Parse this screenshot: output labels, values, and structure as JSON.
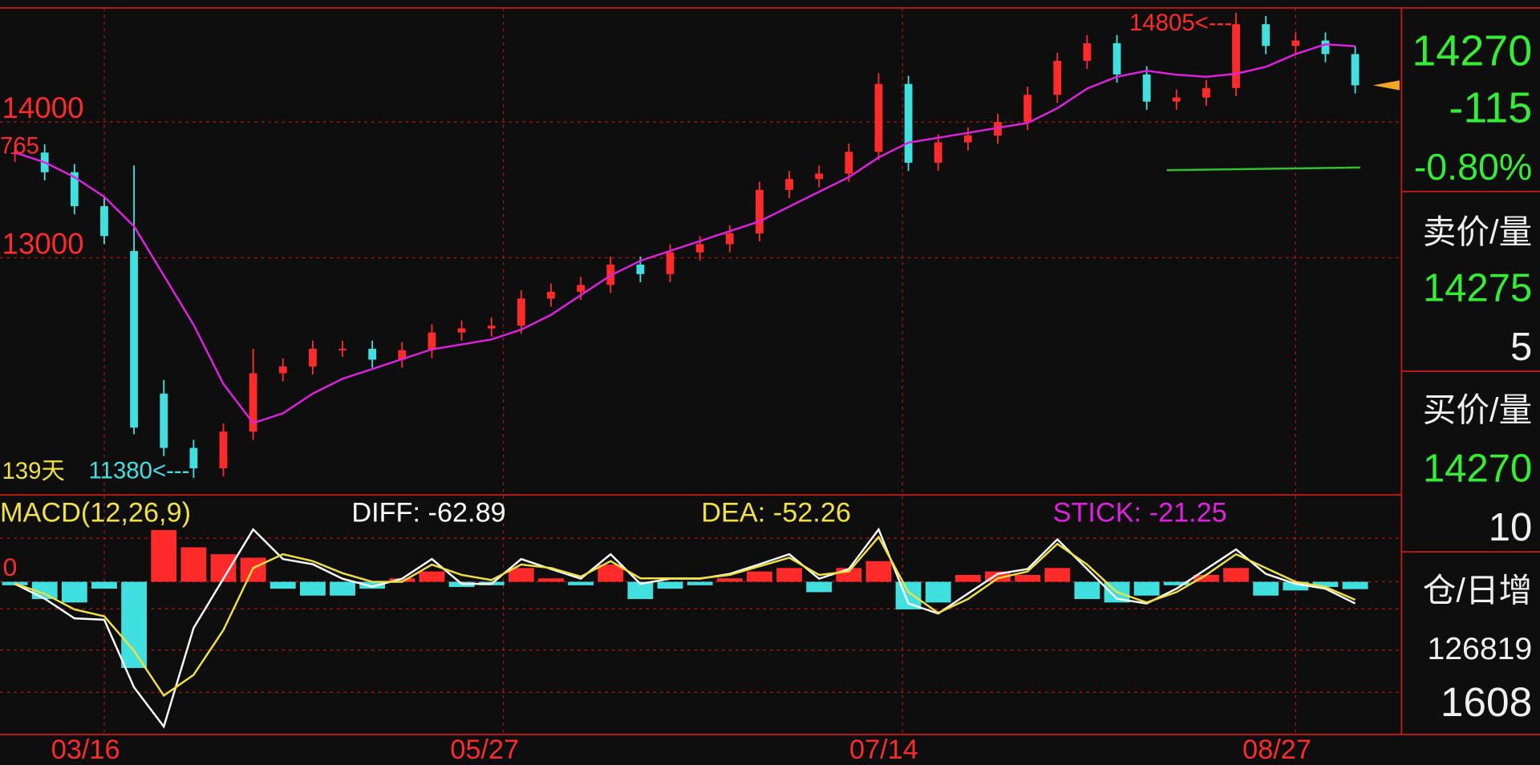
{
  "chart_data": [
    {
      "type": "candlestick",
      "start_label": "765",
      "high_label": "14805<---",
      "low_label": "11380<---",
      "period_label": "139天",
      "open": [
        13765,
        13775,
        13630,
        13380,
        13050,
        12000,
        11600,
        11450,
        11720,
        12150,
        12200,
        12330,
        12330,
        12250,
        12320,
        12450,
        12480,
        12500,
        12700,
        12750,
        12800,
        12950,
        12880,
        13040,
        13100,
        13180,
        13500,
        13580,
        13620,
        13780,
        14280,
        13700,
        13850,
        13900,
        14000,
        14200,
        14450,
        14580,
        14350,
        14150,
        14180,
        14250,
        14720,
        14560,
        14600,
        14500
      ],
      "high": [
        13835,
        13835,
        13690,
        13440,
        13680,
        12100,
        11660,
        11780,
        12330,
        12260,
        12390,
        12390,
        12390,
        12380,
        12510,
        12540,
        12560,
        12760,
        12810,
        12860,
        13010,
        13010,
        13100,
        13160,
        13240,
        13560,
        13640,
        13680,
        13840,
        14360,
        14340,
        13910,
        13960,
        14060,
        14260,
        14510,
        14640,
        14640,
        14410,
        14240,
        14310,
        14805,
        14780,
        14660,
        14660,
        14560
      ],
      "low": [
        13705,
        13570,
        13320,
        13100,
        11700,
        11540,
        11380,
        11390,
        11660,
        12090,
        12140,
        12270,
        12190,
        12190,
        12260,
        12390,
        12420,
        12440,
        12640,
        12690,
        12740,
        12820,
        12820,
        12980,
        13040,
        13120,
        13440,
        13520,
        13560,
        13720,
        13640,
        13640,
        13790,
        13840,
        13940,
        14140,
        14390,
        14290,
        14090,
        14090,
        14120,
        14190,
        14500,
        14500,
        14440,
        14210
      ],
      "close": [
        13775,
        13630,
        13380,
        13160,
        11750,
        11600,
        11450,
        11720,
        12150,
        12200,
        12330,
        12330,
        12250,
        12320,
        12450,
        12480,
        12500,
        12700,
        12750,
        12800,
        12950,
        12880,
        13040,
        13100,
        13180,
        13500,
        13580,
        13620,
        13780,
        14280,
        13700,
        13850,
        13900,
        14000,
        14200,
        14450,
        14580,
        14350,
        14150,
        14180,
        14250,
        14720,
        14560,
        14600,
        14500,
        14270
      ],
      "up_color": "#ff2a2a",
      "down_color": "#40e0e0",
      "lines": [
        {
          "color": "#e020e0",
          "values": [
            13775,
            13703,
            13594,
            13449,
            13232,
            12870,
            12507,
            12072,
            11783,
            11855,
            12000,
            12109,
            12181,
            12254,
            12326,
            12362,
            12399,
            12471,
            12580,
            12725,
            12870,
            12978,
            13051,
            13123,
            13196,
            13268,
            13377,
            13486,
            13594,
            13739,
            13848,
            13884,
            13920,
            13957,
            13993,
            14101,
            14246,
            14333,
            14377,
            14348,
            14333,
            14355,
            14406,
            14500,
            14572,
            14558
          ]
        }
      ],
      "reference_line": {
        "color": "#30c030",
        "values": [
          13645,
          13665
        ]
      },
      "xlim": [
        0,
        46
      ],
      "xticks": [
        {
          "value": 3.5,
          "label": "03/16"
        },
        {
          "value": 16.9,
          "label": "05/27"
        },
        {
          "value": 30.3,
          "label": "07/14"
        },
        {
          "value": 43.5,
          "label": "08/27"
        }
      ],
      "ylim": [
        11254,
        14840
      ],
      "yticks": [
        13000,
        14000
      ],
      "grid": true
    },
    {
      "type": "macd",
      "title": "MACD(12,26,9)",
      "title_color": "#f0e040",
      "series": [
        {
          "name": "DIFF: -62.89",
          "color": "#ffffff",
          "values": [
            -6,
            -49,
            -106,
            -110,
            -306,
            -420,
            -134,
            9,
            152,
            66,
            51,
            9,
            -14,
            9,
            66,
            -6,
            -6,
            66,
            37,
            9,
            80,
            -6,
            9,
            9,
            23,
            51,
            80,
            9,
            37,
            152,
            -63,
            -92,
            -34,
            23,
            37,
            123,
            37,
            -49,
            -63,
            -20,
            37,
            94,
            23,
            -6,
            -20,
            -62.89
          ]
        },
        {
          "name": "DEA: -52.26",
          "color": "#f0e040",
          "values": [
            -5,
            -35,
            -80,
            -100,
            -200,
            -330,
            -270,
            -140,
            40,
            80,
            60,
            25,
            0,
            0,
            50,
            20,
            5,
            50,
            40,
            15,
            60,
            10,
            10,
            10,
            20,
            45,
            70,
            20,
            30,
            130,
            -30,
            -90,
            -50,
            10,
            30,
            110,
            50,
            -30,
            -60,
            -30,
            20,
            80,
            40,
            0,
            -15,
            -52.26
          ]
        }
      ],
      "histogram": {
        "name": "STICK: -21.25",
        "color": "#e020e0",
        "up_color": "#ff2a2a",
        "down_color": "#40e0e0",
        "values": [
          -10,
          -50,
          -60,
          -20,
          -250,
          150,
          100,
          80,
          70,
          -20,
          -40,
          -40,
          -20,
          10,
          30,
          -15,
          -10,
          40,
          10,
          -10,
          50,
          -50,
          -20,
          -10,
          10,
          30,
          40,
          -30,
          40,
          60,
          -80,
          -60,
          20,
          30,
          20,
          40,
          -50,
          -60,
          -40,
          -10,
          20,
          40,
          -40,
          -25,
          -15,
          -21.25
        ]
      },
      "xlim": [
        0,
        46
      ],
      "ylim": [
        -443,
        252
      ],
      "yticks": [
        0
      ],
      "grid": true
    }
  ],
  "side_panel": {
    "last_price": 14270,
    "change": -115,
    "change_percent": "-0.80%",
    "ask_label": "卖价/量",
    "ask_price": 14275,
    "ask_volume": 5,
    "bid_label": "买价/量",
    "bid_price": 14270,
    "bid_volume": 10,
    "oi_label": "仓/日增",
    "open_interest": 126819,
    "oi_change": 1608
  }
}
